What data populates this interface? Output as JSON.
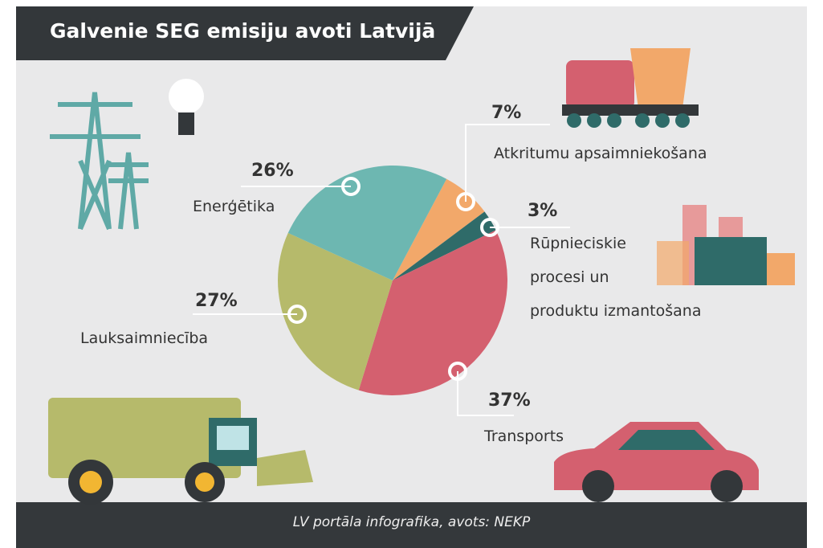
{
  "chart_data": {
    "type": "pie",
    "title": "Galvenie SEG emisiju avoti Latvijā",
    "source": "LV portāla infografika, avots: NEKP",
    "categories": [
      "Atkritumu apsaimniekošana",
      "Rūpnieciskie\nprocesi un\nproduktu izmantošana",
      "Transports",
      "Lauksaimniecība",
      "Enerģētika"
    ],
    "values": [
      7,
      3,
      37,
      27,
      26
    ],
    "value_labels": [
      "7%",
      "3%",
      "37%",
      "27%",
      "26%"
    ],
    "colors": [
      "#f2a86a",
      "#2f6b69",
      "#d4606f",
      "#b6ba6b",
      "#6db7b1"
    ]
  }
}
